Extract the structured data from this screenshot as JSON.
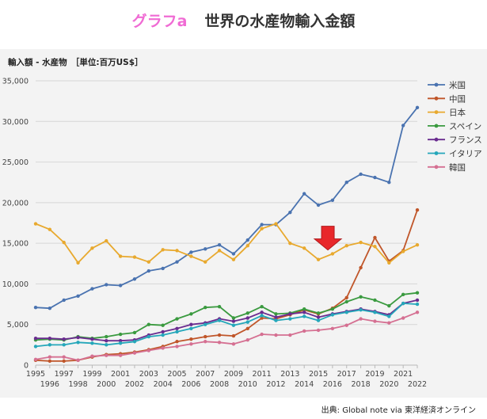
{
  "header": {
    "label": "グラフa",
    "title": "世界の水産物輸入金額"
  },
  "source": "出典: Global note via 東洋経済オンライン",
  "colors": {
    "label_pink": "#f06bd4",
    "arrow_red": "#e8272a",
    "panel_bg": "#f3f3f3"
  },
  "chart_data": {
    "type": "line",
    "title": "輸入額 - 水産物　［単位:百万US$］",
    "xlabel": "",
    "ylabel": "",
    "x": [
      1995,
      1996,
      1997,
      1998,
      1999,
      2000,
      2001,
      2002,
      2003,
      2004,
      2005,
      2006,
      2007,
      2008,
      2009,
      2010,
      2011,
      2012,
      2013,
      2014,
      2015,
      2016,
      2017,
      2018,
      2019,
      2020,
      2021,
      2022
    ],
    "ylim": [
      0,
      35000
    ],
    "yticks": [
      0,
      5000,
      10000,
      15000,
      20000,
      25000,
      30000,
      35000
    ],
    "ytick_labels": [
      "0",
      "5,000",
      "10,000",
      "15,000",
      "20,000",
      "25,000",
      "30,000",
      "35,000"
    ],
    "grid": true,
    "legend_position": "right",
    "series": [
      {
        "name": "米国",
        "color": "#4a73b0",
        "values": [
          7100,
          7000,
          8000,
          8500,
          9400,
          9900,
          9800,
          10600,
          11600,
          11900,
          12700,
          13900,
          14300,
          14800,
          13700,
          15400,
          17300,
          17300,
          18800,
          21100,
          19700,
          20300,
          22500,
          23500,
          23100,
          22500,
          29500,
          31700
        ]
      },
      {
        "name": "中国",
        "color": "#c0562a",
        "values": [
          600,
          500,
          500,
          600,
          1000,
          1300,
          1400,
          1600,
          1900,
          2300,
          2900,
          3200,
          3500,
          3700,
          3600,
          4500,
          5800,
          5700,
          6200,
          6800,
          6300,
          7000,
          8300,
          12000,
          15700,
          12800,
          14100,
          19100
        ]
      },
      {
        "name": "日本",
        "color": "#e8a92e",
        "values": [
          17400,
          16700,
          15100,
          12600,
          14400,
          15300,
          13400,
          13300,
          12700,
          14200,
          14100,
          13400,
          12700,
          14100,
          13000,
          14700,
          16800,
          17400,
          15000,
          14400,
          13000,
          13700,
          14700,
          15100,
          14600,
          12600,
          14000,
          14800
        ]
      },
      {
        "name": "スペイン",
        "color": "#3a9a3f",
        "values": [
          3100,
          3200,
          3100,
          3500,
          3300,
          3500,
          3800,
          4000,
          5000,
          4900,
          5700,
          6300,
          7100,
          7200,
          5800,
          6400,
          7200,
          6300,
          6400,
          6900,
          6400,
          6900,
          7800,
          8400,
          8000,
          7300,
          8700,
          8900
        ]
      },
      {
        "name": "フランス",
        "color": "#6a2c8f",
        "values": [
          3300,
          3300,
          3200,
          3400,
          3200,
          3000,
          3000,
          3100,
          3700,
          4100,
          4500,
          5000,
          5200,
          5700,
          5400,
          5800,
          6500,
          5900,
          6300,
          6500,
          5900,
          6300,
          6600,
          6900,
          6600,
          6200,
          7600,
          8000
        ]
      },
      {
        "name": "イタリア",
        "color": "#25a7ba",
        "values": [
          2300,
          2500,
          2500,
          2800,
          2700,
          2500,
          2700,
          2900,
          3500,
          3700,
          4100,
          4500,
          5000,
          5500,
          4900,
          5300,
          6100,
          5500,
          5700,
          6000,
          5500,
          6200,
          6500,
          6800,
          6500,
          6000,
          7600,
          7500
        ]
      },
      {
        "name": "韓国",
        "color": "#d57092",
        "values": [
          700,
          1000,
          1000,
          600,
          1100,
          1200,
          1200,
          1500,
          1800,
          2100,
          2300,
          2600,
          2900,
          2800,
          2600,
          3100,
          3800,
          3700,
          3700,
          4200,
          4300,
          4500,
          4900,
          5700,
          5400,
          5200,
          5800,
          6500
        ]
      }
    ],
    "annotations": [
      {
        "type": "arrow",
        "direction": "down",
        "target_x": 2015,
        "target_y": 13000,
        "color": "#e8272a"
      }
    ]
  }
}
